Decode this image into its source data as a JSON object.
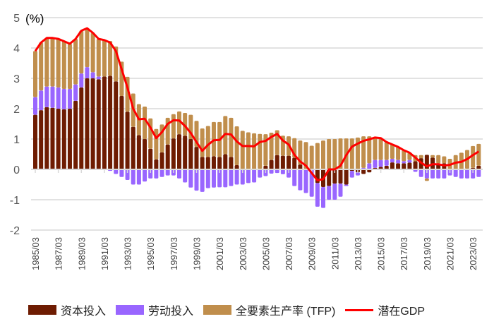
{
  "chart_data": {
    "type": "bar",
    "stacked": true,
    "unit_label": "(%)",
    "ylim": [
      -2,
      5
    ],
    "yticks": [
      5,
      4,
      3,
      2,
      1,
      0,
      -1,
      -2
    ],
    "grid": true,
    "legend_position": "bottom",
    "categories": [
      "1985/03",
      "1985/09",
      "1986/03",
      "1986/09",
      "1987/03",
      "1987/09",
      "1988/03",
      "1988/09",
      "1989/03",
      "1989/09",
      "1990/03",
      "1990/09",
      "1991/03",
      "1991/09",
      "1992/03",
      "1992/09",
      "1993/03",
      "1993/09",
      "1994/03",
      "1994/09",
      "1995/03",
      "1995/09",
      "1996/03",
      "1996/09",
      "1997/03",
      "1997/09",
      "1998/03",
      "1998/09",
      "1999/03",
      "1999/09",
      "2000/03",
      "2000/09",
      "2001/03",
      "2001/09",
      "2002/03",
      "2002/09",
      "2003/03",
      "2003/09",
      "2004/03",
      "2004/09",
      "2005/03",
      "2005/09",
      "2006/03",
      "2006/09",
      "2007/03",
      "2007/09",
      "2008/03",
      "2008/09",
      "2009/03",
      "2009/09",
      "2010/03",
      "2010/09",
      "2011/03",
      "2011/09",
      "2012/03",
      "2012/09",
      "2013/03",
      "2013/09",
      "2014/03",
      "2014/09",
      "2015/03",
      "2015/09",
      "2016/03",
      "2016/09",
      "2017/03",
      "2017/09",
      "2018/03",
      "2018/09",
      "2019/03",
      "2019/09",
      "2020/03",
      "2020/09",
      "2021/03",
      "2021/09",
      "2022/03",
      "2022/09",
      "2023/03",
      "2023/09"
    ],
    "xtick_labels": [
      "1985/03",
      "1987/03",
      "1989/03",
      "1991/03",
      "1993/03",
      "1995/03",
      "1997/03",
      "1999/03",
      "2001/03",
      "2003/03",
      "2005/03",
      "2007/03",
      "2009/03",
      "2011/03",
      "2013/03",
      "2015/03",
      "2017/03",
      "2019/03",
      "2021/03",
      "2023/03"
    ],
    "series": [
      {
        "name": "资本投入",
        "kind": "bar",
        "color": "#6E1C02",
        "values": [
          1.8,
          1.95,
          2.05,
          2.03,
          2.0,
          1.98,
          2.0,
          2.26,
          2.7,
          3.0,
          3.0,
          2.97,
          3.06,
          3.08,
          2.9,
          2.42,
          1.9,
          1.4,
          1.13,
          1.0,
          0.68,
          0.33,
          0.56,
          0.82,
          1.02,
          1.16,
          1.11,
          1.0,
          0.74,
          0.41,
          0.41,
          0.43,
          0.41,
          0.5,
          0.41,
          0.14,
          0.0,
          0.0,
          0.0,
          0.02,
          0.12,
          0.31,
          0.47,
          0.45,
          0.45,
          0.38,
          0.16,
          0.02,
          0.0,
          -0.45,
          -0.58,
          -0.55,
          -0.47,
          -0.47,
          -0.5,
          -0.05,
          -0.1,
          -0.15,
          -0.1,
          0.05,
          0.08,
          0.12,
          0.23,
          0.2,
          0.2,
          0.22,
          0.27,
          0.37,
          0.48,
          0.39,
          0.2,
          0.2,
          0.0,
          0.0,
          0.0,
          0.02,
          0.05,
          0.12
        ]
      },
      {
        "name": "劳动投入",
        "kind": "bar",
        "color": "#9966FF",
        "values": [
          0.58,
          0.65,
          0.68,
          0.7,
          0.7,
          0.67,
          0.65,
          0.54,
          0.46,
          0.37,
          0.2,
          0.09,
          0.0,
          -0.05,
          -0.15,
          -0.25,
          -0.35,
          -0.5,
          -0.5,
          -0.4,
          -0.3,
          -0.3,
          -0.25,
          -0.2,
          -0.2,
          -0.3,
          -0.43,
          -0.6,
          -0.7,
          -0.74,
          -0.62,
          -0.6,
          -0.59,
          -0.59,
          -0.55,
          -0.5,
          -0.5,
          -0.45,
          -0.43,
          -0.27,
          -0.22,
          -0.14,
          -0.12,
          -0.16,
          -0.27,
          -0.55,
          -0.69,
          -0.78,
          -0.9,
          -0.78,
          -0.69,
          -0.45,
          -0.53,
          -0.43,
          -0.05,
          -0.22,
          -0.1,
          0.05,
          0.2,
          0.26,
          0.23,
          0.19,
          0.12,
          0.11,
          0.07,
          0.09,
          -0.08,
          -0.25,
          -0.3,
          -0.3,
          -0.3,
          -0.3,
          -0.2,
          -0.25,
          -0.3,
          -0.3,
          -0.3,
          -0.25
        ]
      },
      {
        "name": "全要素生产率 (TFP)",
        "kind": "bar",
        "color": "#C08E4C",
        "values": [
          1.52,
          1.58,
          1.6,
          1.6,
          1.6,
          1.57,
          1.49,
          1.5,
          1.41,
          1.28,
          1.3,
          1.24,
          1.2,
          1.15,
          1.15,
          1.13,
          1.15,
          1.1,
          1.02,
          1.07,
          1.0,
          1.0,
          0.92,
          0.88,
          0.8,
          0.75,
          0.75,
          0.8,
          0.86,
          0.94,
          1.02,
          1.13,
          1.15,
          1.26,
          1.29,
          1.28,
          1.27,
          1.22,
          1.19,
          1.15,
          1.04,
          0.9,
          0.82,
          0.66,
          0.64,
          0.65,
          0.79,
          0.88,
          0.78,
          0.87,
          0.95,
          1.0,
          1.0,
          1.02,
          1.02,
          1.02,
          1.05,
          1.04,
          0.89,
          0.74,
          0.72,
          0.59,
          0.47,
          0.43,
          0.36,
          0.24,
          0.2,
          0.1,
          -0.08,
          0.08,
          0.27,
          0.23,
          0.35,
          0.47,
          0.55,
          0.62,
          0.72,
          0.72
        ]
      },
      {
        "name": "潜在GDP",
        "kind": "line",
        "color": "#FF0000",
        "values": [
          3.9,
          4.18,
          4.33,
          4.33,
          4.3,
          4.22,
          4.14,
          4.3,
          4.57,
          4.65,
          4.5,
          4.3,
          4.26,
          4.18,
          3.9,
          3.3,
          2.7,
          2.0,
          1.65,
          1.67,
          1.38,
          1.03,
          1.23,
          1.5,
          1.62,
          1.61,
          1.43,
          1.2,
          0.9,
          0.61,
          0.81,
          0.96,
          0.97,
          1.17,
          1.15,
          0.92,
          0.77,
          0.77,
          0.76,
          0.9,
          0.94,
          1.07,
          1.17,
          0.95,
          0.82,
          0.48,
          0.26,
          0.12,
          -0.12,
          -0.36,
          -0.32,
          0.0,
          0.0,
          0.12,
          0.47,
          0.75,
          0.85,
          0.94,
          0.99,
          1.05,
          1.03,
          0.9,
          0.82,
          0.74,
          0.63,
          0.55,
          0.39,
          0.22,
          0.1,
          0.17,
          0.17,
          0.13,
          0.15,
          0.22,
          0.25,
          0.34,
          0.47,
          0.59
        ]
      }
    ]
  }
}
